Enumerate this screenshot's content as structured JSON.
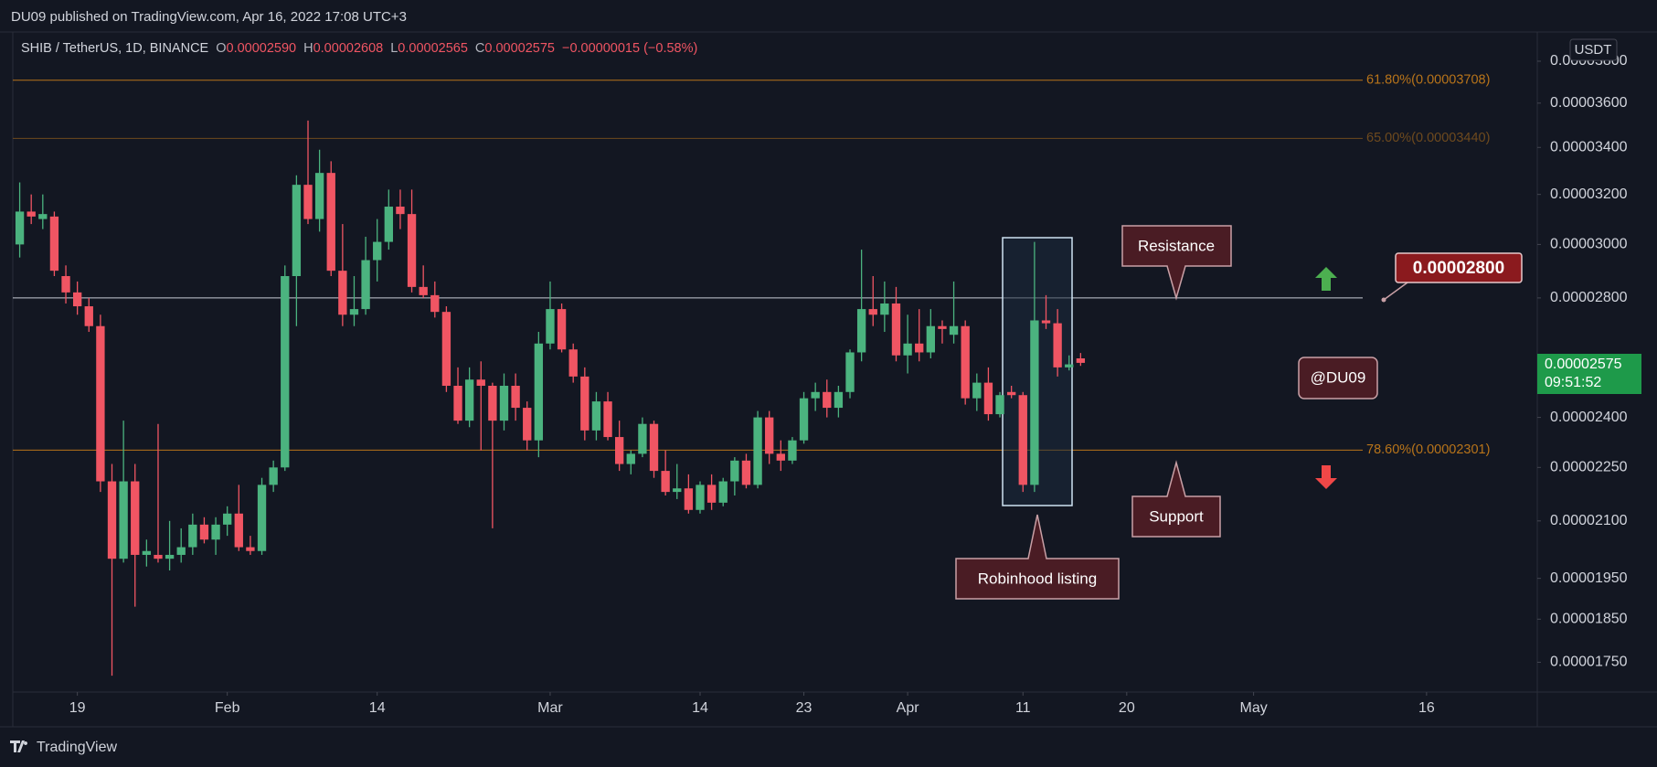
{
  "header": {
    "publisher": "DU09 published on TradingView.com, Apr 16, 2022 17:08 UTC+3"
  },
  "footer": {
    "brand": "TradingView"
  },
  "chart_data": {
    "type": "candlestick",
    "symbol": "SHIB / TetherUS, 1D, BINANCE",
    "ohlc_header": [
      {
        "label": "O",
        "value": "0.00002590"
      },
      {
        "label": "H",
        "value": "0.00002608"
      },
      {
        "label": "L",
        "value": "0.00002565"
      },
      {
        "label": "C",
        "value": "0.00002575"
      }
    ],
    "change": "−0.00000015 (−0.58%)",
    "currency": "USDT",
    "log_scale": true,
    "grid": false,
    "up_color": "#4bb37f",
    "down_color": "#f05563",
    "x": [
      14,
      15,
      16,
      17,
      18,
      19,
      20,
      21,
      22,
      23,
      24,
      25,
      26,
      27,
      28,
      29,
      30,
      31,
      32,
      33,
      34,
      35,
      36,
      37,
      38,
      39,
      40,
      41,
      42,
      43,
      44,
      45,
      46,
      47,
      48,
      49,
      50,
      51,
      52,
      53,
      54,
      55,
      56,
      57,
      58,
      59,
      60,
      61,
      62,
      63,
      64,
      65,
      66,
      67,
      68,
      69,
      70,
      71,
      72,
      73,
      74,
      75,
      76,
      77,
      78,
      79,
      80,
      81,
      82,
      83,
      84,
      85,
      86,
      87,
      88,
      89,
      90,
      91,
      92,
      93,
      94,
      95,
      96,
      97,
      98,
      99,
      100,
      101,
      102,
      103,
      104,
      105,
      106
    ],
    "open": [
      3e-05,
      3.13e-05,
      3.1e-05,
      3.11e-05,
      2.88e-05,
      2.82e-05,
      2.77e-05,
      2.7e-05,
      2.21e-05,
      2e-05,
      2.21e-05,
      2.01e-05,
      2.01e-05,
      2e-05,
      2.01e-05,
      2.03e-05,
      2.09e-05,
      2.05e-05,
      2.09e-05,
      2.12e-05,
      2.03e-05,
      2.02e-05,
      2.2e-05,
      2.25e-05,
      2.88e-05,
      3.24e-05,
      3.1e-05,
      3.29e-05,
      2.9e-05,
      2.74e-05,
      2.76e-05,
      2.94e-05,
      3.01e-05,
      3.15e-05,
      3.12e-05,
      2.84e-05,
      2.81e-05,
      2.75e-05,
      2.5e-05,
      2.39e-05,
      2.52e-05,
      2.5e-05,
      2.39e-05,
      2.5e-05,
      2.43e-05,
      2.33e-05,
      2.64e-05,
      2.76e-05,
      2.62e-05,
      2.53e-05,
      2.36e-05,
      2.45e-05,
      2.34e-05,
      2.26e-05,
      2.29e-05,
      2.38e-05,
      2.24e-05,
      2.18e-05,
      2.19e-05,
      2.13e-05,
      2.2e-05,
      2.15e-05,
      2.21e-05,
      2.27e-05,
      2.2e-05,
      2.4e-05,
      2.29e-05,
      2.27e-05,
      2.33e-05,
      2.46e-05,
      2.48e-05,
      2.43e-05,
      2.48e-05,
      2.61e-05,
      2.76e-05,
      2.74e-05,
      2.78e-05,
      2.6e-05,
      2.64e-05,
      2.61e-05,
      2.7e-05,
      2.67e-05,
      2.7e-05,
      2.46e-05,
      2.51e-05,
      2.41e-05,
      2.48e-05,
      2.47e-05,
      2.2e-05,
      2.72e-05,
      2.71e-05,
      2.56e-05,
      2.59e-05
    ],
    "high": [
      3.25e-05,
      3.2e-05,
      3.2e-05,
      3.13e-05,
      2.92e-05,
      2.86e-05,
      2.8e-05,
      2.74e-05,
      2.26e-05,
      2.39e-05,
      2.26e-05,
      2.05e-05,
      2.38e-05,
      2.1e-05,
      2.08e-05,
      2.12e-05,
      2.11e-05,
      2.11e-05,
      2.14e-05,
      2.2e-05,
      2.06e-05,
      2.22e-05,
      2.27e-05,
      2.92e-05,
      3.28e-05,
      3.52e-05,
      3.39e-05,
      3.34e-05,
      3.08e-05,
      2.88e-05,
      3.03e-05,
      3.1e-05,
      3.22e-05,
      3.22e-05,
      3.22e-05,
      2.92e-05,
      2.86e-05,
      2.77e-05,
      2.56e-05,
      2.56e-05,
      2.58e-05,
      2.51e-05,
      2.54e-05,
      2.54e-05,
      2.45e-05,
      2.68e-05,
      2.86e-05,
      2.78e-05,
      2.64e-05,
      2.56e-05,
      2.48e-05,
      2.48e-05,
      2.39e-05,
      2.3e-05,
      2.4e-05,
      2.39e-05,
      2.3e-05,
      2.26e-05,
      2.23e-05,
      2.21e-05,
      2.23e-05,
      2.22e-05,
      2.28e-05,
      2.29e-05,
      2.42e-05,
      2.42e-05,
      2.33e-05,
      2.34e-05,
      2.48e-05,
      2.51e-05,
      2.52e-05,
      2.5e-05,
      2.62e-05,
      2.98e-05,
      2.88e-05,
      2.86e-05,
      2.84e-05,
      2.74e-05,
      2.76e-05,
      2.76e-05,
      2.72e-05,
      2.86e-05,
      2.72e-05,
      2.54e-05,
      2.56e-05,
      2.48e-05,
      2.5e-05,
      2.48e-05,
      3.01e-05,
      2.81e-05,
      2.76e-05,
      2.6e-05,
      2.608e-05
    ],
    "low": [
      2.95e-05,
      3.08e-05,
      3.06e-05,
      2.88e-05,
      2.78e-05,
      2.74e-05,
      2.68e-05,
      2.18e-05,
      1.72e-05,
      1.99e-05,
      1.88e-05,
      1.98e-05,
      1.99e-05,
      1.97e-05,
      1.99e-05,
      2.01e-05,
      2.04e-05,
      2.01e-05,
      2.06e-05,
      2.02e-05,
      2.01e-05,
      2.01e-05,
      2.18e-05,
      2.24e-05,
      2.7e-05,
      3.08e-05,
      3.05e-05,
      2.88e-05,
      2.7e-05,
      2.7e-05,
      2.74e-05,
      2.86e-05,
      2.98e-05,
      3.06e-05,
      2.82e-05,
      2.8e-05,
      2.73e-05,
      2.48e-05,
      2.38e-05,
      2.37e-05,
      2.3e-05,
      2.08e-05,
      2.36e-05,
      2.39e-05,
      2.3e-05,
      2.28e-05,
      2.62e-05,
      2.61e-05,
      2.51e-05,
      2.33e-05,
      2.33e-05,
      2.33e-05,
      2.24e-05,
      2.23e-05,
      2.28e-05,
      2.22e-05,
      2.17e-05,
      2.16e-05,
      2.12e-05,
      2.12e-05,
      2.13e-05,
      2.14e-05,
      2.17e-05,
      2.19e-05,
      2.19e-05,
      2.26e-05,
      2.24e-05,
      2.26e-05,
      2.32e-05,
      2.42e-05,
      2.4e-05,
      2.4e-05,
      2.46e-05,
      2.58e-05,
      2.7e-05,
      2.68e-05,
      2.58e-05,
      2.54e-05,
      2.58e-05,
      2.59e-05,
      2.64e-05,
      2.64e-05,
      2.44e-05,
      2.42e-05,
      2.39e-05,
      2.4e-05,
      2.46e-05,
      2.18e-05,
      2.18e-05,
      2.69e-05,
      2.53e-05,
      2.55e-05,
      2.565e-05
    ],
    "close": [
      3.13e-05,
      3.11e-05,
      3.12e-05,
      2.9e-05,
      2.82e-05,
      2.77e-05,
      2.7e-05,
      2.21e-05,
      2e-05,
      2.21e-05,
      2.01e-05,
      2.02e-05,
      2e-05,
      2.01e-05,
      2.03e-05,
      2.09e-05,
      2.05e-05,
      2.09e-05,
      2.12e-05,
      2.03e-05,
      2.02e-05,
      2.2e-05,
      2.25e-05,
      2.88e-05,
      3.24e-05,
      3.1e-05,
      3.29e-05,
      2.9e-05,
      2.74e-05,
      2.76e-05,
      2.94e-05,
      3.01e-05,
      3.15e-05,
      3.12e-05,
      2.84e-05,
      2.81e-05,
      2.75e-05,
      2.5e-05,
      2.39e-05,
      2.52e-05,
      2.5e-05,
      2.39e-05,
      2.5e-05,
      2.43e-05,
      2.33e-05,
      2.64e-05,
      2.76e-05,
      2.62e-05,
      2.53e-05,
      2.36e-05,
      2.45e-05,
      2.34e-05,
      2.26e-05,
      2.29e-05,
      2.38e-05,
      2.24e-05,
      2.18e-05,
      2.19e-05,
      2.13e-05,
      2.2e-05,
      2.15e-05,
      2.21e-05,
      2.27e-05,
      2.2e-05,
      2.4e-05,
      2.29e-05,
      2.27e-05,
      2.33e-05,
      2.46e-05,
      2.48e-05,
      2.43e-05,
      2.48e-05,
      2.61e-05,
      2.76e-05,
      2.74e-05,
      2.78e-05,
      2.6e-05,
      2.64e-05,
      2.61e-05,
      2.7e-05,
      2.69e-05,
      2.7e-05,
      2.46e-05,
      2.51e-05,
      2.41e-05,
      2.47e-05,
      2.47e-05,
      2.2e-05,
      2.72e-05,
      2.71e-05,
      2.56e-05,
      2.57e-05,
      2.575e-05
    ],
    "xlim": [
      13.4,
      145.6
    ],
    "xticks": [
      {
        "value": 19,
        "label": "19"
      },
      {
        "value": 32,
        "label": "Feb"
      },
      {
        "value": 45,
        "label": "14"
      },
      {
        "value": 60,
        "label": "Mar"
      },
      {
        "value": 73,
        "label": "14"
      },
      {
        "value": 82,
        "label": "23"
      },
      {
        "value": 91,
        "label": "Apr"
      },
      {
        "value": 101,
        "label": "11"
      },
      {
        "value": 110,
        "label": "20"
      },
      {
        "value": 121,
        "label": "May"
      },
      {
        "value": 136,
        "label": "16"
      }
    ],
    "ylim": [
      1.684e-05,
      3.946e-05
    ],
    "yticks": [
      {
        "value": 3.8e-05,
        "label": "0.00003800"
      },
      {
        "value": 3.6e-05,
        "label": "0.00003600"
      },
      {
        "value": 3.4e-05,
        "label": "0.00003400"
      },
      {
        "value": 3.2e-05,
        "label": "0.00003200"
      },
      {
        "value": 3e-05,
        "label": "0.00003000"
      },
      {
        "value": 2.8e-05,
        "label": "0.00002800"
      },
      {
        "value": 2.4e-05,
        "label": "0.00002400"
      },
      {
        "value": 2.25e-05,
        "label": "0.00002250"
      },
      {
        "value": 2.1e-05,
        "label": "0.00002100"
      },
      {
        "value": 1.95e-05,
        "label": "0.00001950"
      },
      {
        "value": 1.85e-05,
        "label": "0.00001850"
      },
      {
        "value": 1.75e-05,
        "label": "0.00001750"
      }
    ],
    "levels": [
      {
        "label": "61.80%(0.00003708)",
        "value": 3.708e-05,
        "color": "#b8741a"
      },
      {
        "label": "65.00%(0.00003440)",
        "value": 3.44e-05,
        "color": "#6e4a1e"
      },
      {
        "label": "78.60%(0.00002301)",
        "value": 2.301e-05,
        "color": "#b8741a"
      }
    ],
    "resistance_level": {
      "value": 2.8e-05,
      "label": "0.00002800",
      "color": "#c8ccd6"
    },
    "annotations": [
      "Resistance",
      "Support",
      "Robinhood listing",
      "@DU09"
    ],
    "last_price": {
      "label": "0.00002575",
      "countdown": "09:51:52"
    }
  }
}
